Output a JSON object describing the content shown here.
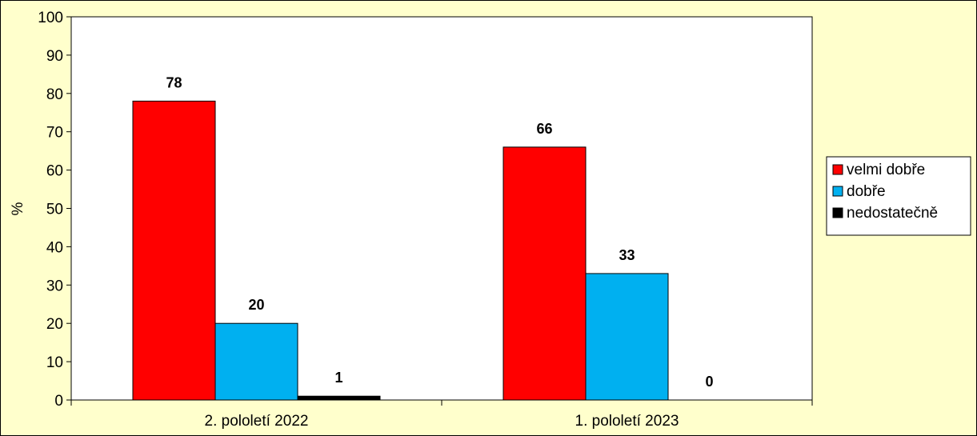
{
  "chart_data": {
    "type": "bar",
    "title": "",
    "xlabel": "",
    "ylabel": "%",
    "ylim": [
      0,
      100
    ],
    "yticks": [
      0,
      10,
      20,
      30,
      40,
      50,
      60,
      70,
      80,
      90,
      100
    ],
    "categories": [
      "2. pololetí 2022",
      "1. pololetí 2023"
    ],
    "series": [
      {
        "name": "velmi dobře",
        "color": "#ff0000",
        "values": [
          78,
          66
        ]
      },
      {
        "name": "dobře",
        "color": "#00b0f0",
        "values": [
          20,
          33
        ]
      },
      {
        "name": "nedostatečně",
        "color": "#000000",
        "values": [
          1,
          0
        ]
      }
    ],
    "grid": false,
    "legend": "right",
    "plot_background": "#ffffff",
    "page_background": "#ffffcc"
  }
}
